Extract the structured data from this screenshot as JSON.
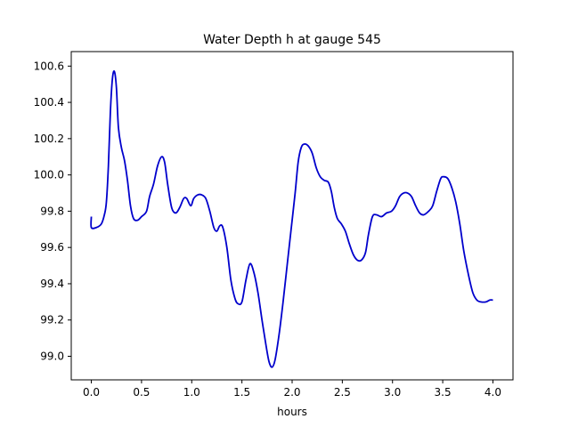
{
  "chart_data": {
    "type": "line",
    "title": "Water Depth h at gauge 545",
    "xlabel": "hours",
    "ylabel": "",
    "xlim": [
      -0.2,
      4.2
    ],
    "ylim": [
      98.87,
      100.68
    ],
    "xticks": [
      0.0,
      0.5,
      1.0,
      1.5,
      2.0,
      2.5,
      3.0,
      3.5,
      4.0
    ],
    "xtick_labels": [
      "0.0",
      "0.5",
      "1.0",
      "1.5",
      "2.0",
      "2.5",
      "3.0",
      "3.5",
      "4.0"
    ],
    "yticks": [
      99.0,
      99.2,
      99.4,
      99.6,
      99.8,
      100.0,
      100.2,
      100.4,
      100.6
    ],
    "ytick_labels": [
      "99.0",
      "99.2",
      "99.4",
      "99.6",
      "99.8",
      "100.0",
      "100.2",
      "100.4",
      "100.6"
    ],
    "grid": false,
    "legend": "none",
    "series": [
      {
        "color": "#0000cc",
        "points": [
          [
            0.0,
            99.77
          ],
          [
            0.0,
            99.71
          ],
          [
            0.05,
            99.71
          ],
          [
            0.1,
            99.73
          ],
          [
            0.13,
            99.78
          ],
          [
            0.15,
            99.85
          ],
          [
            0.17,
            100.05
          ],
          [
            0.19,
            100.35
          ],
          [
            0.21,
            100.53
          ],
          [
            0.23,
            100.57
          ],
          [
            0.25,
            100.48
          ],
          [
            0.27,
            100.26
          ],
          [
            0.3,
            100.15
          ],
          [
            0.33,
            100.08
          ],
          [
            0.36,
            99.97
          ],
          [
            0.39,
            99.83
          ],
          [
            0.42,
            99.76
          ],
          [
            0.46,
            99.75
          ],
          [
            0.5,
            99.77
          ],
          [
            0.55,
            99.8
          ],
          [
            0.58,
            99.88
          ],
          [
            0.62,
            99.95
          ],
          [
            0.66,
            100.05
          ],
          [
            0.7,
            100.1
          ],
          [
            0.73,
            100.07
          ],
          [
            0.76,
            99.95
          ],
          [
            0.8,
            99.82
          ],
          [
            0.84,
            99.79
          ],
          [
            0.88,
            99.82
          ],
          [
            0.92,
            99.87
          ],
          [
            0.95,
            99.87
          ],
          [
            0.99,
            99.83
          ],
          [
            1.02,
            99.87
          ],
          [
            1.06,
            99.89
          ],
          [
            1.1,
            99.89
          ],
          [
            1.14,
            99.87
          ],
          [
            1.18,
            99.8
          ],
          [
            1.22,
            99.71
          ],
          [
            1.25,
            99.69
          ],
          [
            1.28,
            99.72
          ],
          [
            1.31,
            99.71
          ],
          [
            1.35,
            99.6
          ],
          [
            1.39,
            99.42
          ],
          [
            1.43,
            99.32
          ],
          [
            1.46,
            99.29
          ],
          [
            1.5,
            99.3
          ],
          [
            1.54,
            99.42
          ],
          [
            1.58,
            99.51
          ],
          [
            1.62,
            99.46
          ],
          [
            1.66,
            99.35
          ],
          [
            1.7,
            99.2
          ],
          [
            1.74,
            99.06
          ],
          [
            1.77,
            98.97
          ],
          [
            1.8,
            98.94
          ],
          [
            1.83,
            98.98
          ],
          [
            1.87,
            99.12
          ],
          [
            1.91,
            99.3
          ],
          [
            1.95,
            99.5
          ],
          [
            1.99,
            99.7
          ],
          [
            2.03,
            99.9
          ],
          [
            2.06,
            100.07
          ],
          [
            2.09,
            100.15
          ],
          [
            2.12,
            100.17
          ],
          [
            2.16,
            100.16
          ],
          [
            2.2,
            100.12
          ],
          [
            2.24,
            100.04
          ],
          [
            2.28,
            99.99
          ],
          [
            2.32,
            99.97
          ],
          [
            2.36,
            99.96
          ],
          [
            2.39,
            99.91
          ],
          [
            2.42,
            99.82
          ],
          [
            2.45,
            99.76
          ],
          [
            2.49,
            99.73
          ],
          [
            2.53,
            99.69
          ],
          [
            2.57,
            99.62
          ],
          [
            2.61,
            99.56
          ],
          [
            2.65,
            99.53
          ],
          [
            2.69,
            99.53
          ],
          [
            2.73,
            99.57
          ],
          [
            2.76,
            99.67
          ],
          [
            2.8,
            99.77
          ],
          [
            2.84,
            99.78
          ],
          [
            2.89,
            99.77
          ],
          [
            2.94,
            99.79
          ],
          [
            2.99,
            99.8
          ],
          [
            3.03,
            99.83
          ],
          [
            3.07,
            99.88
          ],
          [
            3.11,
            99.9
          ],
          [
            3.15,
            99.9
          ],
          [
            3.19,
            99.88
          ],
          [
            3.23,
            99.83
          ],
          [
            3.27,
            99.79
          ],
          [
            3.31,
            99.78
          ],
          [
            3.36,
            99.8
          ],
          [
            3.4,
            99.83
          ],
          [
            3.44,
            99.91
          ],
          [
            3.48,
            99.98
          ],
          [
            3.51,
            99.99
          ],
          [
            3.55,
            99.98
          ],
          [
            3.59,
            99.93
          ],
          [
            3.63,
            99.85
          ],
          [
            3.67,
            99.73
          ],
          [
            3.71,
            99.58
          ],
          [
            3.76,
            99.44
          ],
          [
            3.8,
            99.35
          ],
          [
            3.84,
            99.31
          ],
          [
            3.88,
            99.3
          ],
          [
            3.93,
            99.3
          ],
          [
            3.97,
            99.31
          ],
          [
            4.0,
            99.31
          ]
        ]
      }
    ]
  }
}
